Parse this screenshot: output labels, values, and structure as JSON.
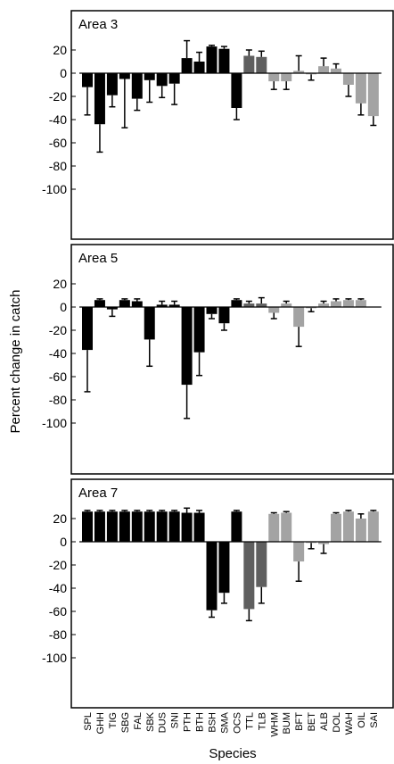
{
  "chart_data": {
    "type": "bar",
    "ylabel": "Percent change in catch",
    "xlabel": "Species",
    "ylim": [
      -120,
      30
    ],
    "yticks": [
      20,
      0,
      -20,
      -40,
      -60,
      -80,
      -100
    ],
    "categories": [
      "SPL",
      "GHH",
      "TIG",
      "SBG",
      "FAL",
      "SBK",
      "DUS",
      "SNI",
      "PTH",
      "BTH",
      "BSH",
      "SMA",
      "OCS",
      "TTL",
      "TLB",
      "WHM",
      "BUM",
      "BFT",
      "BET",
      "ALB",
      "DOL",
      "WAH",
      "OIL",
      "SAI"
    ],
    "group_colors": {
      "shark": "#000000",
      "turtle": "#5f5f5f",
      "fish": "#a3a3a3"
    },
    "category_groups": [
      "shark",
      "shark",
      "shark",
      "shark",
      "shark",
      "shark",
      "shark",
      "shark",
      "shark",
      "shark",
      "shark",
      "shark",
      "shark",
      "turtle",
      "turtle",
      "fish",
      "fish",
      "fish",
      "fish",
      "fish",
      "fish",
      "fish",
      "fish",
      "fish"
    ],
    "panels": [
      {
        "title": "Area 3",
        "values": [
          -12,
          -44,
          -19,
          -5,
          -22,
          -6,
          -11,
          -9,
          13,
          10,
          23,
          21,
          -30,
          15,
          14,
          -7,
          -7,
          2,
          -1,
          6,
          4,
          -10,
          -26,
          -37
        ],
        "errors": [
          24,
          24,
          10,
          42,
          10,
          19,
          10,
          18,
          15,
          8,
          1,
          2,
          10,
          5,
          5,
          7,
          7,
          13,
          5,
          7,
          4,
          10,
          10,
          8
        ]
      },
      {
        "title": "Area 5",
        "values": [
          -37,
          6,
          -2,
          6,
          5,
          -28,
          2,
          2,
          -67,
          -39,
          -6,
          -14,
          6,
          3,
          3,
          -5,
          3,
          -17,
          -1,
          3,
          5,
          6,
          6,
          0
        ],
        "errors": [
          36,
          1,
          6,
          1,
          2,
          23,
          3,
          3,
          29,
          20,
          4,
          6,
          1,
          2,
          5,
          5,
          2,
          17,
          3,
          2,
          2,
          1,
          1,
          0
        ],
        "zero_flat": [
          false,
          false,
          false,
          false,
          false,
          false,
          false,
          false,
          false,
          false,
          false,
          false,
          false,
          false,
          false,
          false,
          false,
          false,
          false,
          false,
          false,
          false,
          false,
          true
        ]
      },
      {
        "title": "Area 7",
        "values": [
          26,
          26,
          26,
          26,
          26,
          26,
          26,
          26,
          25,
          25,
          -59,
          -44,
          26,
          -58,
          -39,
          24,
          25,
          -17,
          -1,
          -2,
          24,
          26,
          20,
          26
        ],
        "errors": [
          1,
          1,
          1,
          1,
          1,
          1,
          1,
          1,
          4,
          2,
          6,
          9,
          1,
          10,
          14,
          1,
          1,
          17,
          5,
          8,
          1,
          1,
          4,
          1
        ]
      }
    ]
  }
}
